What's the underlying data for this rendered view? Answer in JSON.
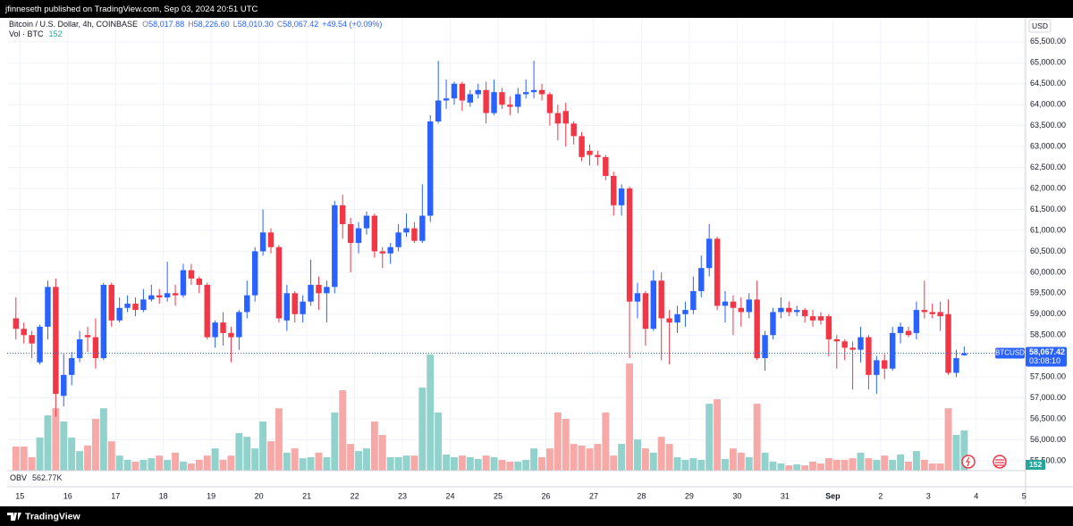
{
  "top_bar": "jfinneseth published on TradingView.com, Sep 03, 2024 20:51 UTC",
  "footer": "TradingView",
  "chart_data": {
    "type": "candlestick",
    "symbol": "Bitcoin / U.S. Dollar, 4h, COINBASE",
    "ohlc_legend": {
      "o_label": "O",
      "o": "58,017.88",
      "h_label": "H",
      "h": "58,226.60",
      "l_label": "L",
      "l": "58,010.30",
      "c_label": "C",
      "c": "58,067.42",
      "change": "+49.54 (+0.09%)"
    },
    "volume_legend": {
      "name": "Vol · BTC"
    },
    "currency": "USD",
    "last_badge": {
      "symbol": "BTCUSD",
      "price": "58,067.42",
      "countdown": "03:08:10"
    },
    "obv": {
      "name": "OBV",
      "value": "562.77K"
    },
    "up_color": "#2962ff",
    "down_color": "#f23645",
    "volume_up_color": "#92d2cc",
    "volume_down_color": "#f7a9a7",
    "grid": true,
    "x": [
      0,
      1,
      2,
      3,
      4,
      5,
      6,
      7,
      8,
      9,
      10,
      11,
      12,
      13,
      14,
      15,
      16,
      17,
      18,
      19,
      20,
      21,
      22,
      23,
      24,
      25,
      26,
      27,
      28,
      29,
      30,
      31,
      32,
      33,
      34,
      35,
      36,
      37,
      38,
      39,
      40,
      41,
      42,
      43,
      44,
      45,
      46,
      47,
      48,
      49,
      50,
      51,
      52,
      53,
      54,
      55,
      56,
      57,
      58,
      59,
      60,
      61,
      62,
      63,
      64,
      65,
      66,
      67,
      68,
      69,
      70,
      71,
      72,
      73,
      74,
      75,
      76,
      77,
      78,
      79,
      80,
      81,
      82,
      83,
      84,
      85,
      86,
      87,
      88,
      89,
      90,
      91,
      92,
      93,
      94,
      95,
      96,
      97,
      98,
      99,
      100,
      101,
      102,
      103,
      104,
      105,
      106,
      107,
      108,
      109,
      110,
      111,
      112,
      113,
      114,
      115,
      116,
      117,
      118,
      119
    ],
    "open": [
      58900,
      58650,
      58500,
      57850,
      58700,
      59650,
      57050,
      57550,
      57950,
      58500,
      58450,
      57950,
      59700,
      58850,
      59150,
      59250,
      59100,
      59350,
      59450,
      59400,
      59500,
      59450,
      60050,
      59850,
      59700,
      58450,
      58800,
      58550,
      58450,
      59050,
      59450,
      60500,
      60950,
      60600,
      58850,
      59500,
      59000,
      59300,
      59700,
      59500,
      59650,
      61600,
      61150,
      60700,
      61050,
      61350,
      60500,
      60450,
      60600,
      60950,
      61050,
      60750,
      61350,
      63600,
      64100,
      64150,
      64500,
      64050,
      64250,
      64350,
      63800,
      64300,
      64000,
      63950,
      64250,
      64300,
      64350,
      64250,
      63800,
      63850,
      63550,
      63250,
      62900,
      62800,
      62750,
      62300,
      61600,
      62000,
      59300,
      59500,
      58650,
      59800,
      58900,
      58800,
      59000,
      59100,
      59550,
      60100,
      60800,
      59200,
      59300,
      59150,
      59050,
      59350,
      57950,
      58500,
      59050,
      59150,
      59050,
      59100,
      58950,
      58950,
      58950,
      58400,
      58350,
      58200,
      58150,
      58450,
      57550,
      57900,
      57700,
      58550,
      58600,
      58550,
      59100,
      59050,
      59050,
      59000,
      57600,
      58017.88
    ],
    "high": [
      59400,
      58800,
      58600,
      58750,
      59800,
      59850,
      58050,
      58100,
      58600,
      58700,
      58900,
      59750,
      59750,
      59400,
      59450,
      59400,
      59600,
      59700,
      59600,
      60250,
      59700,
      60200,
      60200,
      59900,
      59750,
      58850,
      59050,
      58700,
      59100,
      59800,
      60600,
      61500,
      61050,
      60650,
      59700,
      59550,
      59450,
      60300,
      59900,
      59800,
      61700,
      61850,
      61300,
      61200,
      61450,
      61400,
      60600,
      60700,
      61150,
      61400,
      61200,
      62100,
      63750,
      65050,
      64600,
      64550,
      64550,
      64350,
      64500,
      64550,
      64600,
      64400,
      64200,
      64400,
      64600,
      65050,
      64500,
      64300,
      64000,
      64050,
      63600,
      63350,
      63050,
      62900,
      62800,
      62400,
      62100,
      62050,
      59750,
      59550,
      60050,
      60000,
      59100,
      59200,
      59300,
      59900,
      60400,
      61150,
      60850,
      59550,
      59450,
      59400,
      59500,
      59800,
      58600,
      59150,
      59400,
      59300,
      59200,
      59150,
      59100,
      59050,
      59000,
      58500,
      58400,
      58350,
      58700,
      58500,
      58000,
      58050,
      58700,
      58800,
      58700,
      59300,
      59800,
      59250,
      59300,
      59350,
      58150,
      58226.6
    ],
    "low": [
      58400,
      58300,
      57950,
      57800,
      58400,
      56550,
      56800,
      57300,
      57850,
      58100,
      57700,
      57900,
      58700,
      58800,
      59050,
      58950,
      59050,
      59300,
      59250,
      59300,
      59200,
      59400,
      59700,
      59500,
      58400,
      58200,
      58250,
      57850,
      58150,
      58900,
      59300,
      60400,
      60450,
      58800,
      58600,
      58800,
      58800,
      59200,
      59100,
      58800,
      59500,
      60800,
      60000,
      60450,
      60900,
      60350,
      60100,
      60200,
      60500,
      60850,
      60700,
      60700,
      61200,
      63550,
      63900,
      64000,
      63850,
      63950,
      64150,
      63550,
      63750,
      63900,
      63750,
      63800,
      64150,
      64150,
      64100,
      63500,
      63150,
      63000,
      63050,
      62650,
      62550,
      62550,
      62200,
      61350,
      61350,
      57950,
      58900,
      58250,
      58600,
      57900,
      57800,
      58550,
      58700,
      59000,
      59400,
      59900,
      59100,
      58800,
      58500,
      58700,
      58900,
      57900,
      57650,
      58400,
      58900,
      58950,
      58950,
      58800,
      58700,
      58750,
      58000,
      57700,
      57900,
      57200,
      57850,
      57200,
      57100,
      57450,
      57650,
      58300,
      58450,
      58400,
      58900,
      58900,
      58600,
      57550,
      57500,
      58010.3
    ],
    "close": [
      58650,
      58500,
      58300,
      58700,
      59650,
      57100,
      57550,
      57950,
      58400,
      58450,
      57950,
      59700,
      58850,
      59150,
      59250,
      59100,
      59350,
      59450,
      59400,
      59500,
      59450,
      60050,
      59850,
      59700,
      58450,
      58800,
      58550,
      58450,
      59050,
      59450,
      60500,
      60950,
      60600,
      58900,
      59500,
      59000,
      59300,
      59700,
      59500,
      59650,
      61600,
      61150,
      60700,
      61050,
      61350,
      60500,
      60450,
      60600,
      60950,
      61050,
      60750,
      61350,
      63600,
      64100,
      64150,
      64500,
      64100,
      64250,
      64350,
      63800,
      64300,
      64000,
      63950,
      64250,
      64300,
      64350,
      64250,
      63800,
      63550,
      63550,
      63250,
      62750,
      62800,
      62750,
      62300,
      61600,
      62000,
      59300,
      59500,
      58650,
      59800,
      58900,
      58800,
      59000,
      59100,
      59550,
      60100,
      60800,
      59200,
      59300,
      59150,
      59050,
      59350,
      57950,
      58500,
      59050,
      59150,
      59050,
      59100,
      58950,
      58850,
      58850,
      58400,
      58350,
      58200,
      58150,
      58450,
      57550,
      57900,
      57700,
      58550,
      58700,
      58500,
      59100,
      59050,
      59000,
      58950,
      57600,
      57950,
      58067.42
    ],
    "volume": [
      91,
      91,
      51,
      125,
      209,
      236,
      186,
      125,
      74,
      95,
      196,
      236,
      111,
      57,
      41,
      34,
      41,
      47,
      57,
      41,
      68,
      34,
      27,
      41,
      57,
      84,
      41,
      57,
      142,
      128,
      84,
      186,
      111,
      236,
      68,
      84,
      47,
      51,
      68,
      51,
      220,
      304,
      101,
      74,
      84,
      186,
      135,
      51,
      51,
      57,
      57,
      314,
      439,
      220,
      61,
      51,
      57,
      51,
      44,
      57,
      51,
      41,
      34,
      34,
      41,
      84,
      51,
      84,
      220,
      196,
      101,
      95,
      84,
      101,
      220,
      57,
      101,
      405,
      118,
      84,
      68,
      128,
      101,
      51,
      41,
      47,
      41,
      253,
      270,
      44,
      84,
      68,
      51,
      253,
      68,
      34,
      27,
      20,
      24,
      20,
      34,
      27,
      47,
      41,
      41,
      47,
      68,
      47,
      41,
      57,
      41,
      61,
      34,
      74,
      41,
      27,
      27,
      236,
      135,
      152
    ],
    "volume_lim": [
      0,
      1000
    ],
    "xlim": [
      -0.6,
      127.2
    ],
    "xticks": [
      {
        "value": 1,
        "label": "15"
      },
      {
        "value": 7,
        "label": "16"
      },
      {
        "value": 13,
        "label": "17"
      },
      {
        "value": 19,
        "label": "18"
      },
      {
        "value": 25,
        "label": "19"
      },
      {
        "value": 31,
        "label": "20"
      },
      {
        "value": 37,
        "label": "21"
      },
      {
        "value": 43,
        "label": "22"
      },
      {
        "value": 49,
        "label": "23"
      },
      {
        "value": 55,
        "label": "24"
      },
      {
        "value": 61,
        "label": "25"
      },
      {
        "value": 67,
        "label": "26"
      },
      {
        "value": 73,
        "label": "27"
      },
      {
        "value": 79,
        "label": "28"
      },
      {
        "value": 85,
        "label": "29"
      },
      {
        "value": 91,
        "label": "30"
      },
      {
        "value": 97,
        "label": "31"
      },
      {
        "value": 103,
        "label": "Sep"
      },
      {
        "value": 109,
        "label": "2"
      },
      {
        "value": 115,
        "label": "3"
      },
      {
        "value": 121,
        "label": "4"
      },
      {
        "value": 127,
        "label": "5"
      }
    ],
    "ylim": [
      55265,
      66030
    ],
    "yticks": [
      {
        "value": 55500,
        "label": "55,500.00"
      },
      {
        "value": 56000,
        "label": "56,000.00"
      },
      {
        "value": 56500,
        "label": "56,500.00"
      },
      {
        "value": 57000,
        "label": "57,000.00"
      },
      {
        "value": 57500,
        "label": "57,500.00"
      },
      {
        "value": 58000,
        "label": "58,000.00"
      },
      {
        "value": 58500,
        "label": "58,500.00"
      },
      {
        "value": 59000,
        "label": "59,000.00"
      },
      {
        "value": 59500,
        "label": "59,500.00"
      },
      {
        "value": 60000,
        "label": "60,000.00"
      },
      {
        "value": 60500,
        "label": "60,500.00"
      },
      {
        "value": 61000,
        "label": "61,000.00"
      },
      {
        "value": 61500,
        "label": "61,500.00"
      },
      {
        "value": 62000,
        "label": "62,000.00"
      },
      {
        "value": 62500,
        "label": "62,500.00"
      },
      {
        "value": 63000,
        "label": "63,000.00"
      },
      {
        "value": 63500,
        "label": "63,500.00"
      },
      {
        "value": 64000,
        "label": "64,000.00"
      },
      {
        "value": 64500,
        "label": "64,500.00"
      },
      {
        "value": 65000,
        "label": "65,000.00"
      },
      {
        "value": 65500,
        "label": "65,500.00"
      }
    ]
  }
}
